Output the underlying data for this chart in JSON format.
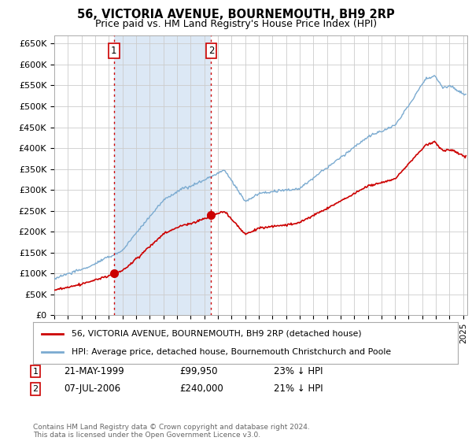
{
  "title": "56, VICTORIA AVENUE, BOURNEMOUTH, BH9 2RP",
  "subtitle": "Price paid vs. HM Land Registry's House Price Index (HPI)",
  "ylabel_ticks": [
    "£0",
    "£50K",
    "£100K",
    "£150K",
    "£200K",
    "£250K",
    "£300K",
    "£350K",
    "£400K",
    "£450K",
    "£500K",
    "£550K",
    "£600K",
    "£650K"
  ],
  "ytick_values": [
    0,
    50000,
    100000,
    150000,
    200000,
    250000,
    300000,
    350000,
    400000,
    450000,
    500000,
    550000,
    600000,
    650000
  ],
  "sale1": {
    "date_num": 1999.38,
    "price": 99950,
    "label": "1",
    "date_str": "21-MAY-1999",
    "below_pct": "23%"
  },
  "sale2": {
    "date_num": 2006.51,
    "price": 240000,
    "label": "2",
    "date_str": "07-JUL-2006",
    "below_pct": "21%"
  },
  "vline_color": "#cc0000",
  "box_color": "#cc0000",
  "hpi_line_color": "#7aaad0",
  "price_line_color": "#cc0000",
  "background_color": "#dce8f5",
  "shaded_region_color": "#dce8f5",
  "grid_color": "#cccccc",
  "legend_label_price": "56, VICTORIA AVENUE, BOURNEMOUTH, BH9 2RP (detached house)",
  "legend_label_hpi": "HPI: Average price, detached house, Bournemouth Christchurch and Poole",
  "footnote": "Contains HM Land Registry data © Crown copyright and database right 2024.\nThis data is licensed under the Open Government Licence v3.0.",
  "xmin": 1995.0,
  "xmax": 2025.3,
  "ymin": 0,
  "ymax": 670000
}
